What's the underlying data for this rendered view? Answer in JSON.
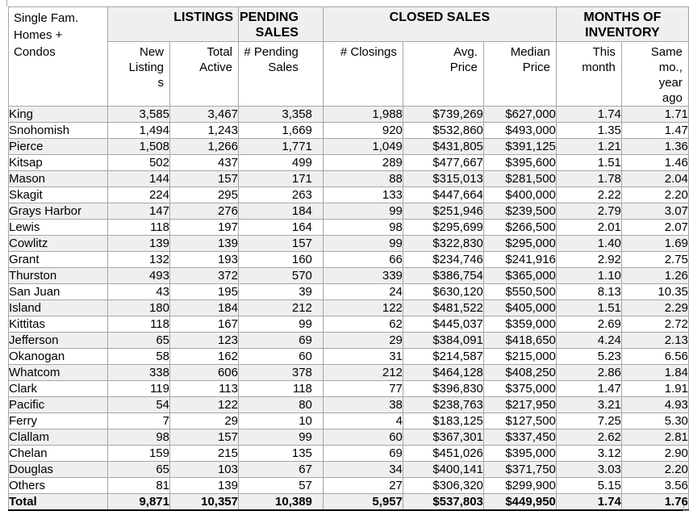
{
  "colors": {
    "stripe_row_bg": "#efefef",
    "group_header_bg": "#efefef",
    "gridline": "#a6a6a6",
    "total_row_border": "#000000",
    "text": "#000000",
    "background": "#ffffff"
  },
  "table": {
    "corner_label": "Single Fam.\nHomes +\nCondos",
    "group_headers": {
      "listings": "LISTINGS",
      "pending_sales": "PENDING\nSALES",
      "closed_sales": "CLOSED SALES",
      "months_of_inventory": "MONTHS OF\nINVENTORY"
    },
    "subheaders": {
      "new_listings": "New\nListing\ns",
      "total_active": "Total\nActive",
      "pending_sales": "# Pending\nSales",
      "closings": "# Closings",
      "avg_price": "Avg.\nPrice",
      "median_price": "Median\nPrice",
      "this_month": "This\nmonth",
      "same_month_year_ago": "Same\nmo.,\nyear\nago"
    },
    "columns": [
      "new_listings",
      "total_active",
      "pending_sales",
      "closings",
      "avg_price",
      "median_price",
      "this_month",
      "same_month_year_ago"
    ],
    "rows": [
      {
        "county": "King",
        "values": [
          "3,585",
          "3,467",
          "3,358",
          "1,988",
          "$739,269",
          "$627,000",
          "1.74",
          "1.71"
        ]
      },
      {
        "county": "Snohomish",
        "values": [
          "1,494",
          "1,243",
          "1,669",
          "920",
          "$532,860",
          "$493,000",
          "1.35",
          "1.47"
        ]
      },
      {
        "county": "Pierce",
        "values": [
          "1,508",
          "1,266",
          "1,771",
          "1,049",
          "$431,805",
          "$391,125",
          "1.21",
          "1.36"
        ]
      },
      {
        "county": "Kitsap",
        "values": [
          "502",
          "437",
          "499",
          "289",
          "$477,667",
          "$395,600",
          "1.51",
          "1.46"
        ]
      },
      {
        "county": "Mason",
        "values": [
          "144",
          "157",
          "171",
          "88",
          "$315,013",
          "$281,500",
          "1.78",
          "2.04"
        ]
      },
      {
        "county": "Skagit",
        "values": [
          "224",
          "295",
          "263",
          "133",
          "$447,664",
          "$400,000",
          "2.22",
          "2.20"
        ]
      },
      {
        "county": "Grays Harbor",
        "values": [
          "147",
          "276",
          "184",
          "99",
          "$251,946",
          "$239,500",
          "2.79",
          "3.07"
        ]
      },
      {
        "county": "Lewis",
        "values": [
          "118",
          "197",
          "164",
          "98",
          "$295,699",
          "$266,500",
          "2.01",
          "2.07"
        ]
      },
      {
        "county": "Cowlitz",
        "values": [
          "139",
          "139",
          "157",
          "99",
          "$322,830",
          "$295,000",
          "1.40",
          "1.69"
        ]
      },
      {
        "county": "Grant",
        "values": [
          "132",
          "193",
          "160",
          "66",
          "$234,746",
          "$241,916",
          "2.92",
          "2.75"
        ]
      },
      {
        "county": "Thurston",
        "values": [
          "493",
          "372",
          "570",
          "339",
          "$386,754",
          "$365,000",
          "1.10",
          "1.26"
        ]
      },
      {
        "county": "San Juan",
        "values": [
          "43",
          "195",
          "39",
          "24",
          "$630,120",
          "$550,500",
          "8.13",
          "10.35"
        ]
      },
      {
        "county": "Island",
        "values": [
          "180",
          "184",
          "212",
          "122",
          "$481,522",
          "$405,000",
          "1.51",
          "2.29"
        ]
      },
      {
        "county": "Kittitas",
        "values": [
          "118",
          "167",
          "99",
          "62",
          "$445,037",
          "$359,000",
          "2.69",
          "2.72"
        ]
      },
      {
        "county": "Jefferson",
        "values": [
          "65",
          "123",
          "69",
          "29",
          "$384,091",
          "$418,650",
          "4.24",
          "2.13"
        ]
      },
      {
        "county": "Okanogan",
        "values": [
          "58",
          "162",
          "60",
          "31",
          "$214,587",
          "$215,000",
          "5.23",
          "6.56"
        ]
      },
      {
        "county": "Whatcom",
        "values": [
          "338",
          "606",
          "378",
          "212",
          "$464,128",
          "$408,250",
          "2.86",
          "1.84"
        ]
      },
      {
        "county": "Clark",
        "values": [
          "119",
          "113",
          "118",
          "77",
          "$396,830",
          "$375,000",
          "1.47",
          "1.91"
        ]
      },
      {
        "county": "Pacific",
        "values": [
          "54",
          "122",
          "80",
          "38",
          "$238,763",
          "$217,950",
          "3.21",
          "4.93"
        ]
      },
      {
        "county": "Ferry",
        "values": [
          "7",
          "29",
          "10",
          "4",
          "$183,125",
          "$127,500",
          "7.25",
          "5.30"
        ]
      },
      {
        "county": "Clallam",
        "values": [
          "98",
          "157",
          "99",
          "60",
          "$367,301",
          "$337,450",
          "2.62",
          "2.81"
        ]
      },
      {
        "county": "Chelan",
        "values": [
          "159",
          "215",
          "135",
          "69",
          "$451,026",
          "$395,000",
          "3.12",
          "2.90"
        ]
      },
      {
        "county": "Douglas",
        "values": [
          "65",
          "103",
          "67",
          "34",
          "$400,141",
          "$371,750",
          "3.03",
          "2.20"
        ]
      },
      {
        "county": "Others",
        "values": [
          "81",
          "139",
          "57",
          "27",
          "$306,320",
          "$299,900",
          "5.15",
          "3.56"
        ]
      }
    ],
    "total_row": {
      "county": "Total",
      "values": [
        "9,871",
        "10,357",
        "10,389",
        "5,957",
        "$537,803",
        "$449,950",
        "1.74",
        "1.76"
      ]
    }
  }
}
